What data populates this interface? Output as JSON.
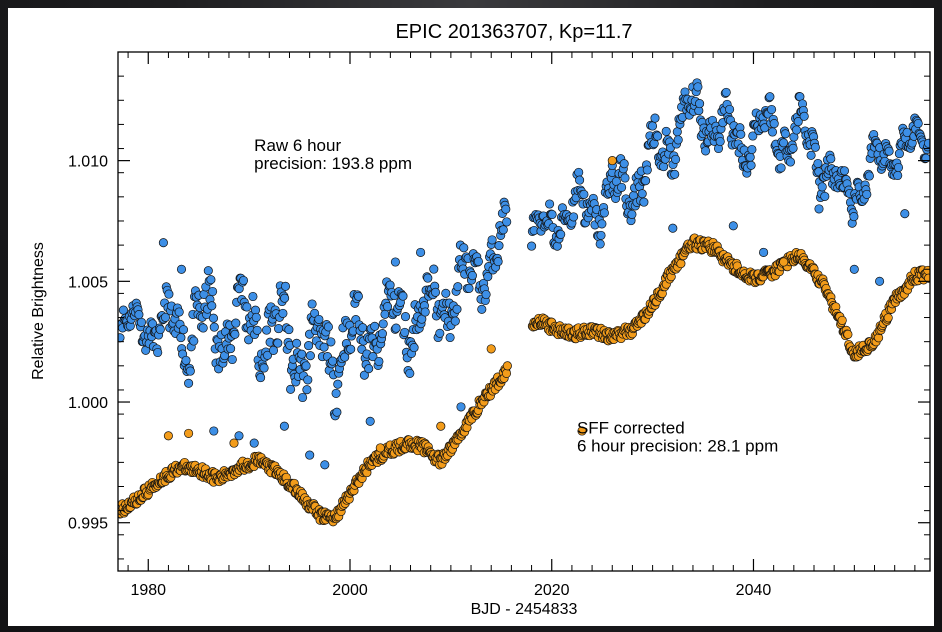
{
  "chart_data": {
    "type": "scatter",
    "title": "EPIC 201363707, Kp=11.7",
    "xlabel": "BJD - 2454833",
    "ylabel": "Relative Brightness",
    "xlim": [
      1977,
      2057.5
    ],
    "ylim": [
      0.993,
      1.0145
    ],
    "x_ticks": [
      1980,
      2000,
      2020,
      2040
    ],
    "x_tick_labels": [
      "1980",
      "2000",
      "2020",
      "2040"
    ],
    "y_ticks": [
      0.995,
      1.0,
      1.005,
      1.01
    ],
    "y_tick_labels": [
      "0.995",
      "1.000",
      "1.005",
      "1.010"
    ],
    "grid": false,
    "annotations": [
      {
        "id": "raw",
        "lines": [
          "Raw 6 hour",
          "precision: 193.8 ppm"
        ],
        "x": 1990.5,
        "y": 1.0104
      },
      {
        "id": "sff",
        "lines": [
          "SFF corrected",
          "6 hour precision: 28.1 ppm"
        ],
        "x": 2022.5,
        "y": 0.9987
      }
    ],
    "series": [
      {
        "color": "#3d8fe6",
        "edge": "#111111",
        "note": "raw, envelope mean and half-spread per sample",
        "x": [
          1977.2,
          1979.0,
          1981.0,
          1983.0,
          1985.0,
          1987.0,
          1989.0,
          1991.0,
          1993.0,
          1995.0,
          1997.0,
          1999.0,
          2001.0,
          2003.0,
          2005.0,
          2007.0,
          2009.0,
          2011.0,
          2013.0,
          2015.0,
          2018.5,
          2021.0,
          2023.0,
          2025.0,
          2027.0,
          2029.0,
          2031.0,
          2033.0,
          2035.0,
          2037.0,
          2039.0,
          2041.0,
          2043.0,
          2045.0,
          2047.0,
          2049.0,
          2051.0,
          2053.0,
          2055.0,
          2057.4
        ],
        "mean": [
          1.003,
          1.0034,
          1.0029,
          1.003,
          1.0032,
          1.0031,
          1.0034,
          1.0031,
          1.0026,
          1.0022,
          1.0019,
          1.0022,
          1.0026,
          1.0031,
          1.0035,
          1.0036,
          1.004,
          1.0047,
          1.0055,
          1.0065,
          1.0068,
          1.0078,
          1.008,
          1.0082,
          1.0087,
          1.0093,
          1.0103,
          1.0117,
          1.012,
          1.0112,
          1.0108,
          1.0114,
          1.011,
          1.0112,
          1.0098,
          1.0083,
          1.0092,
          1.0101,
          1.0108,
          1.0108
        ],
        "spread": [
          0.001,
          0.0008,
          0.0012,
          0.0018,
          0.002,
          0.002,
          0.0021,
          0.002,
          0.0022,
          0.0022,
          0.0021,
          0.002,
          0.002,
          0.0018,
          0.0019,
          0.0018,
          0.0017,
          0.0017,
          0.0014,
          0.0015,
          0.001,
          0.0012,
          0.0014,
          0.0014,
          0.0015,
          0.0016,
          0.0017,
          0.0014,
          0.0013,
          0.0014,
          0.0014,
          0.0013,
          0.0014,
          0.0013,
          0.0014,
          0.0012,
          0.0012,
          0.0011,
          0.001,
          0.0008
        ],
        "outliers_x": [
          1981.5,
          1983.3,
          1986.5,
          1989.0,
          1990.5,
          1993.5,
          1996.0,
          1997.5,
          2002.0,
          2004.5,
          2007.0,
          2011.0,
          2026.0,
          2032.0,
          2038.0,
          2041.0,
          2046.5,
          2050.0,
          2052.5,
          2055.0
        ],
        "outliers_y": [
          1.0066,
          1.0055,
          0.9988,
          0.9986,
          0.9983,
          0.999,
          0.9978,
          0.9974,
          0.9992,
          1.0058,
          1.0062,
          0.9998,
          1.0098,
          1.0072,
          1.0073,
          1.0062,
          1.008,
          1.0055,
          1.005,
          1.0078
        ]
      },
      {
        "color": "#f39c1a",
        "edge": "#111111",
        "note": "SFF corrected",
        "x": [
          1977.2,
          1979.0,
          1981.0,
          1983.0,
          1985.0,
          1987.0,
          1989.0,
          1991.0,
          1993.0,
          1995.0,
          1997.0,
          1998.5,
          2000.0,
          2002.0,
          2004.0,
          2006.0,
          2007.5,
          2009.0,
          2011.0,
          2013.0,
          2015.0,
          2018.5,
          2020.0,
          2022.0,
          2024.0,
          2026.0,
          2028.0,
          2030.0,
          2032.0,
          2034.0,
          2036.0,
          2038.0,
          2040.0,
          2042.0,
          2044.0,
          2045.0,
          2047.0,
          2049.0,
          2050.0,
          2052.0,
          2054.0,
          2056.0,
          2057.4
        ],
        "y": [
          0.9955,
          0.996,
          0.9967,
          0.9973,
          0.9972,
          0.9968,
          0.9973,
          0.9976,
          0.997,
          0.9962,
          0.9953,
          0.9952,
          0.9962,
          0.9975,
          0.998,
          0.9983,
          0.9981,
          0.9975,
          0.9987,
          1.0,
          1.001,
          1.0034,
          1.0031,
          1.0028,
          1.003,
          1.0027,
          1.003,
          1.004,
          1.0055,
          1.0066,
          1.0064,
          1.0056,
          1.0051,
          1.0054,
          1.006,
          1.0059,
          1.0048,
          1.003,
          1.002,
          1.0025,
          1.0042,
          1.0052,
          1.0053
        ],
        "outliers_x": [
          1982.0,
          1984.0,
          1988.5,
          2003.0,
          2009.0,
          2014.0,
          2023.0,
          2026.0,
          2043.0
        ],
        "outliers_y": [
          0.9986,
          0.9987,
          0.9983,
          0.9981,
          0.999,
          1.0022,
          0.9988,
          1.01,
          1.0058
        ]
      }
    ]
  }
}
